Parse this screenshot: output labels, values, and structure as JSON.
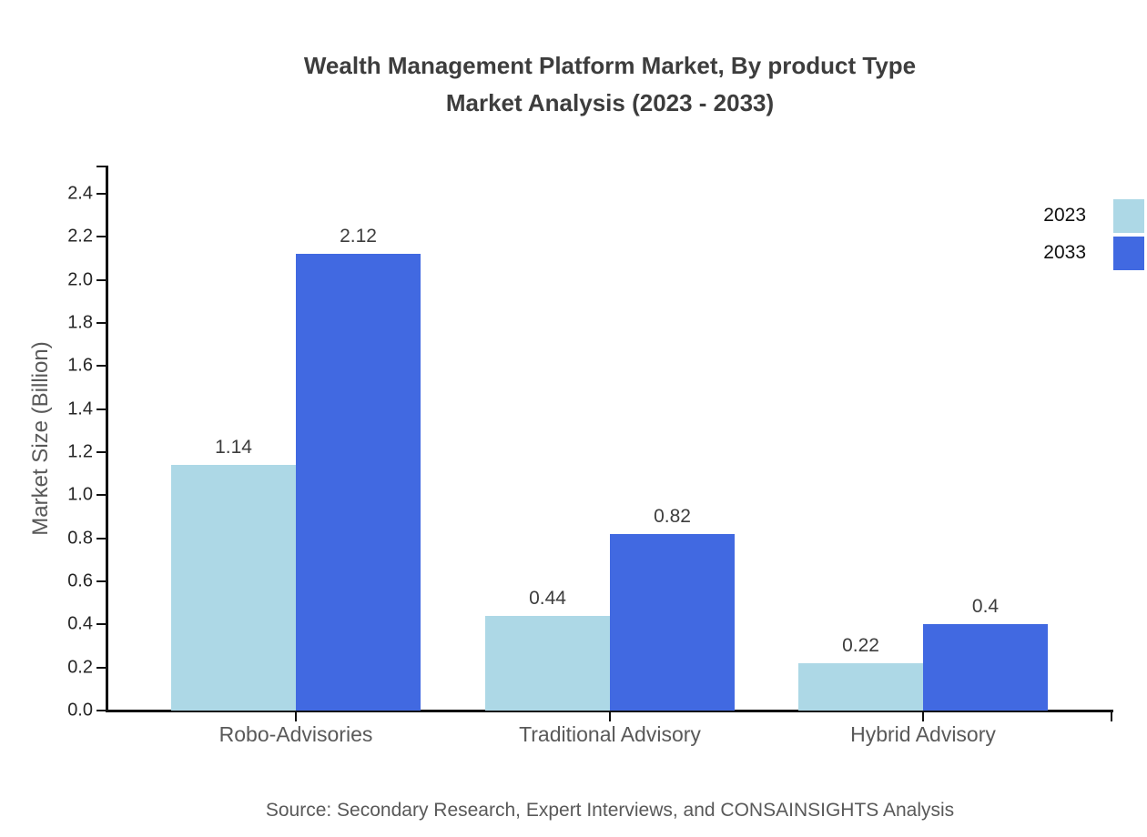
{
  "title": {
    "line1": "Wealth Management Platform Market, By product Type",
    "line2": "Market Analysis (2023 - 2033)"
  },
  "source": "Source: Secondary Research, Expert Interviews, and CONSAINSIGHTS Analysis",
  "chart_data": {
    "type": "bar",
    "title": "Wealth Management Platform Market, By product Type Market Analysis (2023 - 2033)",
    "categories": [
      "Robo-Advisories",
      "Traditional Advisory",
      "Hybrid Advisory"
    ],
    "series": [
      {
        "name": "2023",
        "color": "#ADD8E6",
        "values": [
          1.14,
          0.44,
          0.22
        ],
        "labels": [
          "1.14",
          "0.44",
          "0.22"
        ]
      },
      {
        "name": "2033",
        "color": "#4169E1",
        "values": [
          2.12,
          0.82,
          0.4
        ],
        "labels": [
          "2.12",
          "0.82",
          "0.4"
        ]
      }
    ],
    "xlabel": "",
    "ylabel": "Market Size (Billion)",
    "ylim": [
      0,
      2.4
    ],
    "y_ticks": [
      "0.0",
      "0.2",
      "0.4",
      "0.6",
      "0.8",
      "1.0",
      "1.2",
      "1.4",
      "1.6",
      "1.8",
      "2.0",
      "2.2",
      "2.4"
    ],
    "grid": false,
    "legend_position": "top-right",
    "axis_color": "#111111",
    "tick_label_color": "#262626",
    "category_label_color": "#595959",
    "value_label_color": "#3d3d3d",
    "title_color": "#3d3d3d"
  }
}
